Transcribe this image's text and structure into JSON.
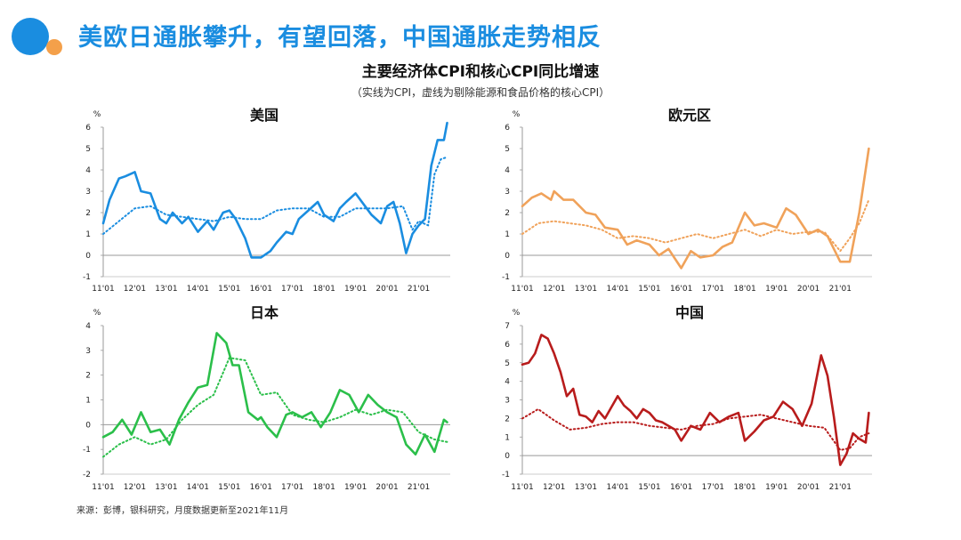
{
  "header": {
    "title": "美欧日通胀攀升，有望回落，中国通胀走势相反",
    "chart_title": "主要经济体CPI和核心CPI同比增速",
    "chart_subtitle": "（实线为CPI，虚线为剔除能源和食品价格的核心CPI）",
    "source": "来源：彭博，银科研究，月度数据更新至2021年11月"
  },
  "colors": {
    "title": "#1a8de0",
    "us": "#1a8de0",
    "euro": "#f0a25a",
    "japan": "#2bbf4a",
    "china": "#b81c1c",
    "logo_orange": "#f4a04a"
  },
  "chart_data": [
    {
      "type": "line",
      "title": "美国",
      "unit": "%",
      "color": "#1a8de0",
      "x_labels": [
        "11'01",
        "12'01",
        "13'01",
        "14'01",
        "15'01",
        "16'01",
        "17'01",
        "18'01",
        "19'01",
        "20'01",
        "21'01"
      ],
      "ylim": [
        -1,
        6
      ],
      "yticks": [
        -1,
        0,
        1,
        2,
        3,
        4,
        5,
        6
      ],
      "series": [
        {
          "style": "solid",
          "x": [
            0,
            0.2,
            0.5,
            0.7,
            1.0,
            1.2,
            1.5,
            1.8,
            2.0,
            2.2,
            2.5,
            2.7,
            3.0,
            3.3,
            3.5,
            3.8,
            4.0,
            4.2,
            4.5,
            4.7,
            5.0,
            5.3,
            5.5,
            5.8,
            6.0,
            6.2,
            6.5,
            6.8,
            7.0,
            7.3,
            7.5,
            7.7,
            8.0,
            8.3,
            8.5,
            8.8,
            9.0,
            9.2,
            9.4,
            9.6,
            9.8,
            10.0,
            10.2,
            10.4,
            10.6,
            10.8,
            10.9
          ],
          "values": [
            1.5,
            2.6,
            3.6,
            3.7,
            3.9,
            3.0,
            2.9,
            1.7,
            1.5,
            2.0,
            1.5,
            1.8,
            1.1,
            1.6,
            1.2,
            2.0,
            2.1,
            1.7,
            0.8,
            -0.1,
            -0.1,
            0.2,
            0.6,
            1.1,
            1.0,
            1.7,
            2.1,
            2.5,
            1.9,
            1.6,
            2.2,
            2.5,
            2.9,
            2.3,
            1.9,
            1.5,
            2.3,
            2.5,
            1.5,
            0.1,
            1.0,
            1.4,
            1.7,
            4.2,
            5.4,
            5.4,
            6.2
          ]
        },
        {
          "style": "dotted",
          "x": [
            0,
            0.5,
            1.0,
            1.5,
            2.0,
            2.5,
            3.0,
            3.5,
            4.0,
            4.5,
            5.0,
            5.5,
            6.0,
            6.5,
            7.0,
            7.5,
            8.0,
            8.5,
            9.0,
            9.5,
            9.8,
            10.0,
            10.3,
            10.5,
            10.7,
            10.9
          ],
          "values": [
            1.0,
            1.6,
            2.2,
            2.3,
            1.9,
            1.8,
            1.7,
            1.6,
            1.8,
            1.7,
            1.7,
            2.1,
            2.2,
            2.2,
            1.8,
            1.8,
            2.2,
            2.2,
            2.2,
            2.3,
            1.2,
            1.6,
            1.4,
            3.8,
            4.5,
            4.6
          ]
        }
      ]
    },
    {
      "type": "line",
      "title": "欧元区",
      "unit": "%",
      "color": "#f0a25a",
      "x_labels": [
        "11'01",
        "12'01",
        "13'01",
        "14'01",
        "15'01",
        "16'01",
        "17'01",
        "18'01",
        "19'01",
        "20'01",
        "21'01"
      ],
      "ylim": [
        -1,
        6
      ],
      "yticks": [
        -1,
        0,
        1,
        2,
        3,
        4,
        5,
        6
      ],
      "series": [
        {
          "style": "solid",
          "x": [
            0,
            0.3,
            0.6,
            0.9,
            1.0,
            1.3,
            1.6,
            2.0,
            2.3,
            2.6,
            3.0,
            3.3,
            3.6,
            4.0,
            4.3,
            4.6,
            5.0,
            5.3,
            5.6,
            6.0,
            6.3,
            6.6,
            7.0,
            7.3,
            7.6,
            8.0,
            8.3,
            8.6,
            9.0,
            9.3,
            9.6,
            10.0,
            10.3,
            10.6,
            10.9
          ],
          "values": [
            2.3,
            2.7,
            2.9,
            2.6,
            3.0,
            2.6,
            2.6,
            2.0,
            1.9,
            1.3,
            1.2,
            0.5,
            0.7,
            0.5,
            0.0,
            0.3,
            -0.6,
            0.2,
            -0.1,
            0.0,
            0.4,
            0.6,
            2.0,
            1.4,
            1.5,
            1.3,
            2.2,
            1.9,
            1.0,
            1.2,
            0.9,
            -0.3,
            -0.3,
            2.0,
            5.0
          ]
        },
        {
          "style": "dotted",
          "x": [
            0,
            0.5,
            1.0,
            1.5,
            2.0,
            2.5,
            3.0,
            3.5,
            4.0,
            4.5,
            5.0,
            5.5,
            6.0,
            6.5,
            7.0,
            7.5,
            8.0,
            8.5,
            9.0,
            9.5,
            10.0,
            10.3,
            10.6,
            10.9
          ],
          "values": [
            1.0,
            1.5,
            1.6,
            1.5,
            1.4,
            1.2,
            0.8,
            0.9,
            0.8,
            0.6,
            0.8,
            1.0,
            0.8,
            1.0,
            1.2,
            0.9,
            1.2,
            1.0,
            1.1,
            1.1,
            0.2,
            0.8,
            1.5,
            2.6
          ]
        }
      ]
    },
    {
      "type": "line",
      "title": "日本",
      "unit": "%",
      "color": "#2bbf4a",
      "x_labels": [
        "11'01",
        "12'01",
        "13'01",
        "14'01",
        "15'01",
        "16'01",
        "17'01",
        "18'01",
        "19'01",
        "20'01",
        "21'01"
      ],
      "ylim": [
        -2,
        4
      ],
      "yticks": [
        -2,
        -1,
        0,
        1,
        2,
        3,
        4
      ],
      "series": [
        {
          "style": "solid",
          "x": [
            0,
            0.3,
            0.6,
            0.9,
            1.2,
            1.5,
            1.8,
            2.1,
            2.4,
            2.7,
            3.0,
            3.3,
            3.6,
            3.9,
            4.1,
            4.3,
            4.6,
            4.9,
            5.0,
            5.2,
            5.5,
            5.8,
            6.0,
            6.3,
            6.6,
            6.9,
            7.2,
            7.5,
            7.8,
            8.1,
            8.4,
            8.7,
            9.0,
            9.3,
            9.6,
            9.9,
            10.2,
            10.5,
            10.8,
            10.9
          ],
          "values": [
            -0.5,
            -0.3,
            0.2,
            -0.4,
            0.5,
            -0.3,
            -0.2,
            -0.8,
            0.2,
            0.9,
            1.5,
            1.6,
            3.7,
            3.3,
            2.4,
            2.4,
            0.5,
            0.2,
            0.3,
            -0.1,
            -0.5,
            0.4,
            0.5,
            0.3,
            0.5,
            -0.1,
            0.5,
            1.4,
            1.2,
            0.5,
            1.2,
            0.8,
            0.5,
            0.3,
            -0.8,
            -1.2,
            -0.4,
            -1.1,
            0.2,
            0.1
          ]
        },
        {
          "style": "dotted",
          "x": [
            0,
            0.5,
            1.0,
            1.5,
            2.0,
            2.5,
            3.0,
            3.5,
            4.0,
            4.5,
            5.0,
            5.5,
            6.0,
            6.5,
            7.0,
            7.5,
            8.0,
            8.5,
            9.0,
            9.5,
            10.0,
            10.5,
            10.9
          ],
          "values": [
            -1.3,
            -0.8,
            -0.5,
            -0.8,
            -0.6,
            0.2,
            0.8,
            1.2,
            2.7,
            2.6,
            1.2,
            1.3,
            0.4,
            0.2,
            0.1,
            0.3,
            0.6,
            0.4,
            0.6,
            0.5,
            -0.3,
            -0.6,
            -0.7
          ]
        }
      ]
    },
    {
      "type": "line",
      "title": "中国",
      "unit": "%",
      "color": "#b81c1c",
      "x_labels": [
        "11'01",
        "12'01",
        "13'01",
        "14'01",
        "15'01",
        "16'01",
        "17'01",
        "18'01",
        "19'01",
        "20'01",
        "21'01"
      ],
      "ylim": [
        -1,
        7
      ],
      "yticks": [
        -1,
        0,
        1,
        2,
        3,
        4,
        5,
        6,
        7
      ],
      "series": [
        {
          "style": "solid",
          "x": [
            0,
            0.2,
            0.4,
            0.6,
            0.8,
            1.0,
            1.2,
            1.4,
            1.6,
            1.8,
            2.0,
            2.2,
            2.4,
            2.6,
            2.8,
            3.0,
            3.2,
            3.4,
            3.6,
            3.8,
            4.0,
            4.2,
            4.4,
            4.6,
            4.8,
            5.0,
            5.3,
            5.6,
            5.9,
            6.2,
            6.5,
            6.8,
            7.0,
            7.3,
            7.6,
            7.9,
            8.2,
            8.5,
            8.8,
            9.1,
            9.4,
            9.6,
            9.8,
            10.0,
            10.2,
            10.4,
            10.6,
            10.8,
            10.9
          ],
          "values": [
            4.9,
            5.0,
            5.5,
            6.5,
            6.3,
            5.5,
            4.5,
            3.2,
            3.6,
            2.2,
            2.1,
            1.8,
            2.4,
            2.0,
            2.6,
            3.2,
            2.7,
            2.4,
            2.0,
            2.5,
            2.3,
            1.9,
            1.8,
            1.6,
            1.4,
            0.8,
            1.6,
            1.4,
            2.3,
            1.8,
            2.1,
            2.3,
            0.8,
            1.3,
            1.9,
            2.1,
            2.9,
            2.5,
            1.6,
            2.8,
            5.4,
            4.3,
            2.1,
            -0.5,
            0.1,
            1.2,
            0.9,
            0.7,
            2.3
          ]
        },
        {
          "style": "dotted",
          "x": [
            0,
            0.5,
            1.0,
            1.5,
            2.0,
            2.5,
            3.0,
            3.5,
            4.0,
            4.5,
            5.0,
            5.5,
            6.0,
            6.5,
            7.0,
            7.5,
            8.0,
            8.5,
            9.0,
            9.5,
            10.0,
            10.3,
            10.6,
            10.9
          ],
          "values": [
            2.0,
            2.5,
            1.9,
            1.4,
            1.5,
            1.7,
            1.8,
            1.8,
            1.6,
            1.5,
            1.4,
            1.6,
            1.7,
            2.0,
            2.1,
            2.2,
            2.0,
            1.8,
            1.6,
            1.5,
            0.3,
            0.4,
            1.0,
            1.2
          ]
        }
      ]
    }
  ]
}
